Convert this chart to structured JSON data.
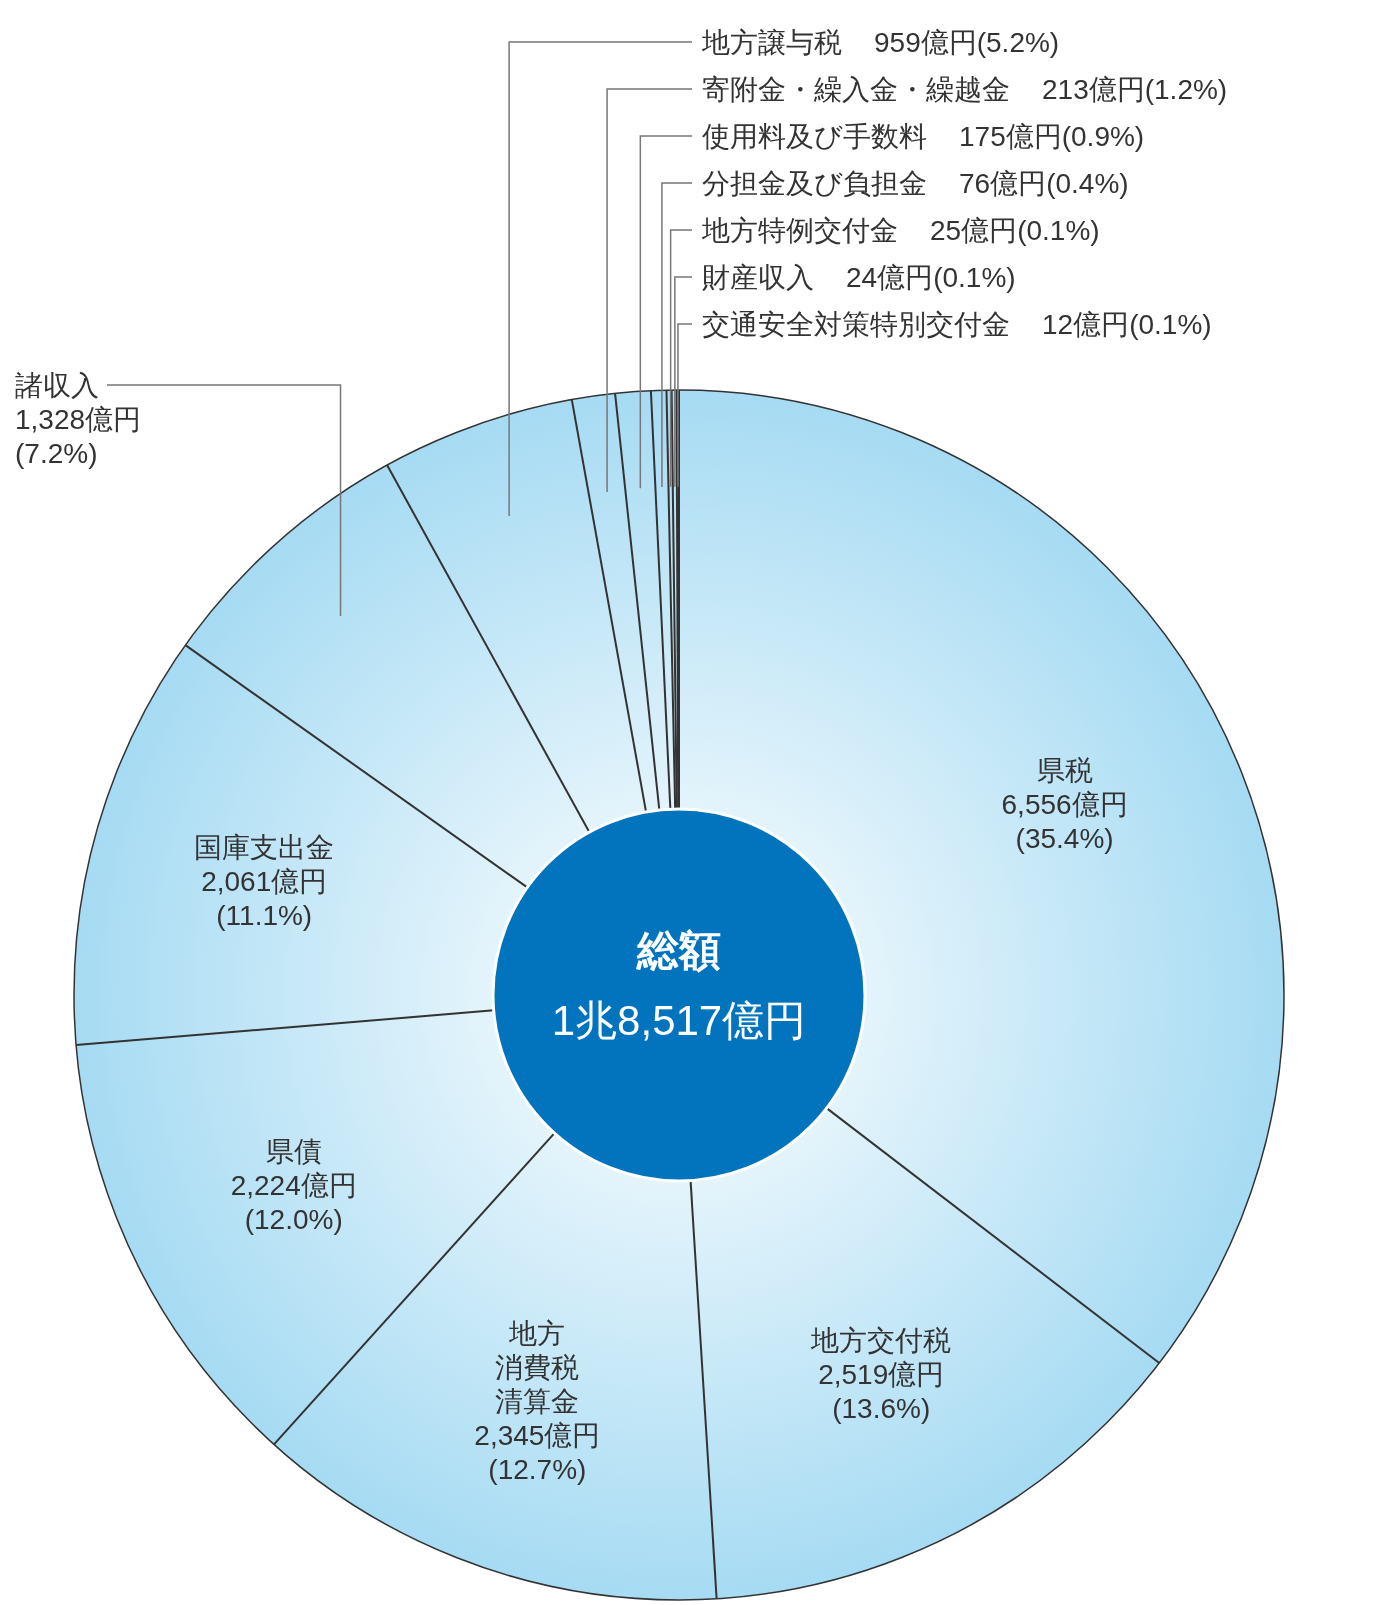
{
  "chart_data": {
    "type": "donut",
    "categories": [
      "県税",
      "地方交付税",
      "地方消費税清算金",
      "県債",
      "国庫支出金",
      "諸収入",
      "地方譲与税",
      "寄附金・繰入金・繰越金",
      "使用料及び手数料",
      "分担金及び負担金",
      "地方特例交付金",
      "財産収入",
      "交通安全対策特別交付金"
    ],
    "values": [
      6556,
      2519,
      2345,
      2224,
      2061,
      1328,
      959,
      213,
      175,
      76,
      25,
      24,
      12
    ],
    "value_labels": [
      "6,556億円\n(35.4%)",
      "2,519億円\n(13.6%)",
      "2,345億円\n(12.7%)",
      "2,224億円\n(12.0%)",
      "2,061億円\n(11.1%)",
      "1,328億円\n(7.2%)",
      "959億円(5.2%)",
      "213億円(1.2%)",
      "175億円(0.9%)",
      "76億円(0.4%)",
      "25億円(0.1%)",
      "24億円(0.1%)",
      "12億円(0.1%)"
    ],
    "colors": [
      "#a6dbf3",
      "#a6dbf3",
      "#a6dbf3",
      "#a6dbf3",
      "#a6dbf3",
      "#a6dbf3",
      "#a6dbf3",
      "#a6dbf3",
      "#a6dbf3",
      "#a6dbf3",
      "#a6dbf3",
      "#a6dbf3",
      "#a6dbf3"
    ],
    "annotations": [
      "総額",
      "1兆8,517億円"
    ]
  }
}
